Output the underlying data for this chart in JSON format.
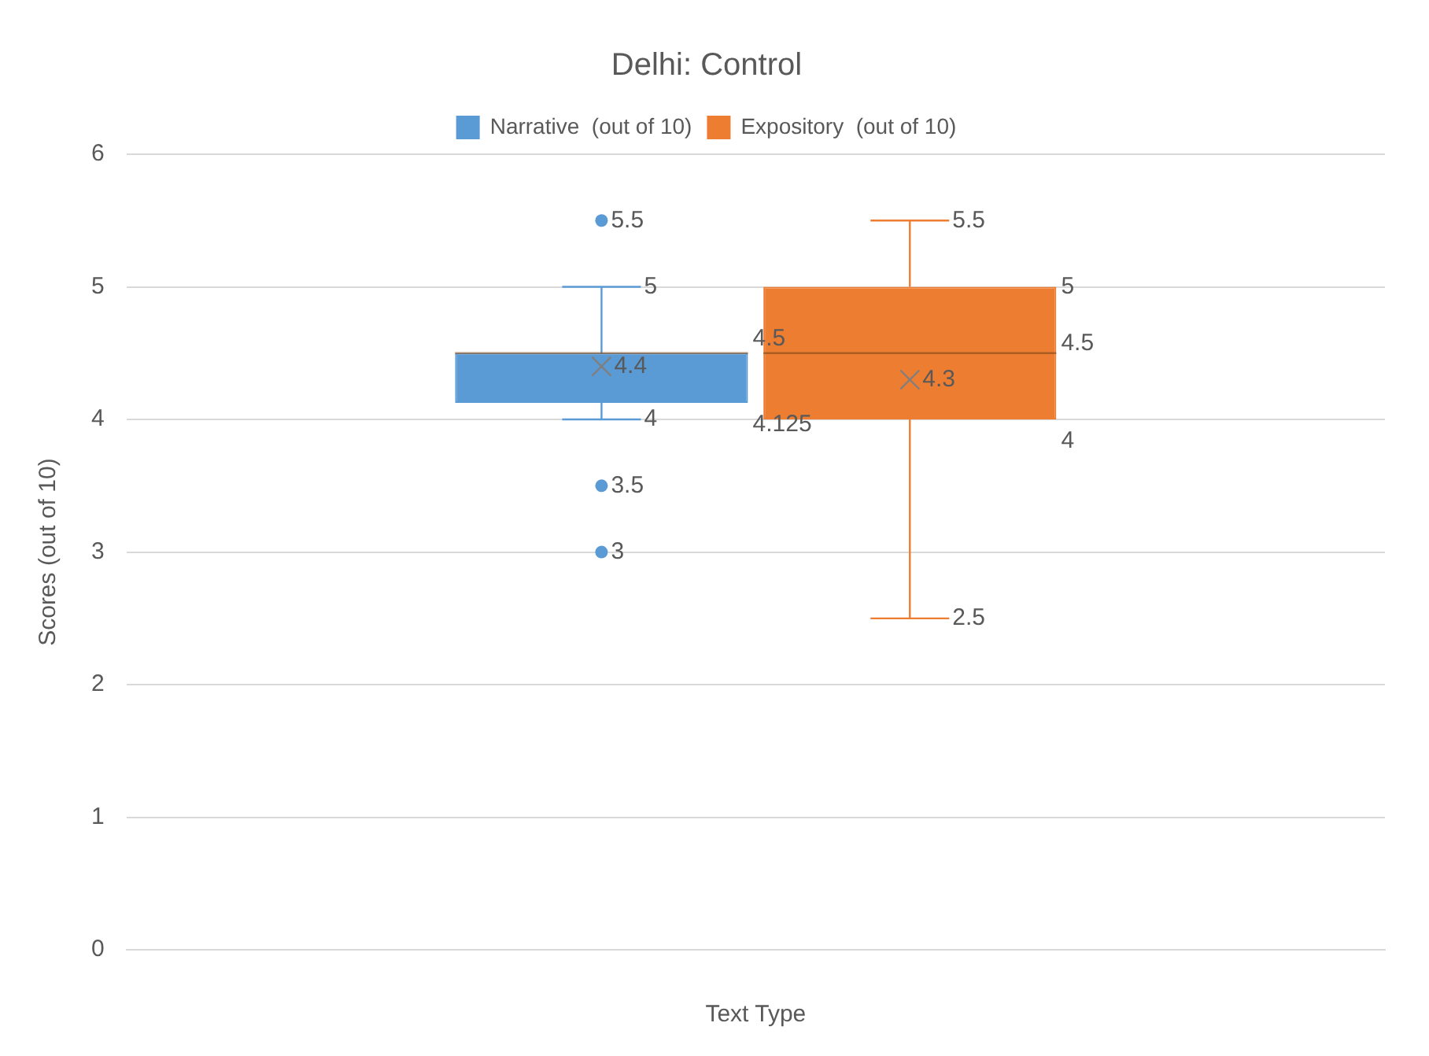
{
  "chart_data": {
    "type": "box",
    "title": "Delhi: Control",
    "xlabel": "Text Type",
    "ylabel": "Scores (out of 10)",
    "categories": [
      null
    ],
    "series": [
      {
        "name": "Narrative  (out of 10)",
        "color": "#5b9bd5",
        "boxes": [
          {
            "low": 4,
            "q1": 4.125,
            "median": 4.5,
            "q3": 4.5,
            "high": 5,
            "mean": 4.4,
            "outliers": [
              5.5,
              3.5,
              3
            ]
          }
        ]
      },
      {
        "name": "Expository  (out of 10)",
        "color": "#ed7d31",
        "boxes": [
          {
            "low": 2.5,
            "q1": 4,
            "median": 4.5,
            "q3": 5,
            "high": 5.5,
            "mean": 4.3
          }
        ]
      }
    ],
    "annotations": [
      "5.5",
      "5",
      "4.5",
      "4.4",
      "4.125",
      "4",
      "3.5",
      "3",
      "5.5",
      "5",
      "4.5",
      "4.3",
      "4",
      "2.5"
    ],
    "ylim": [
      0,
      6
    ],
    "yticks": [
      0,
      1,
      2,
      3,
      4,
      5,
      6
    ],
    "grid": "y",
    "legend": "top"
  }
}
